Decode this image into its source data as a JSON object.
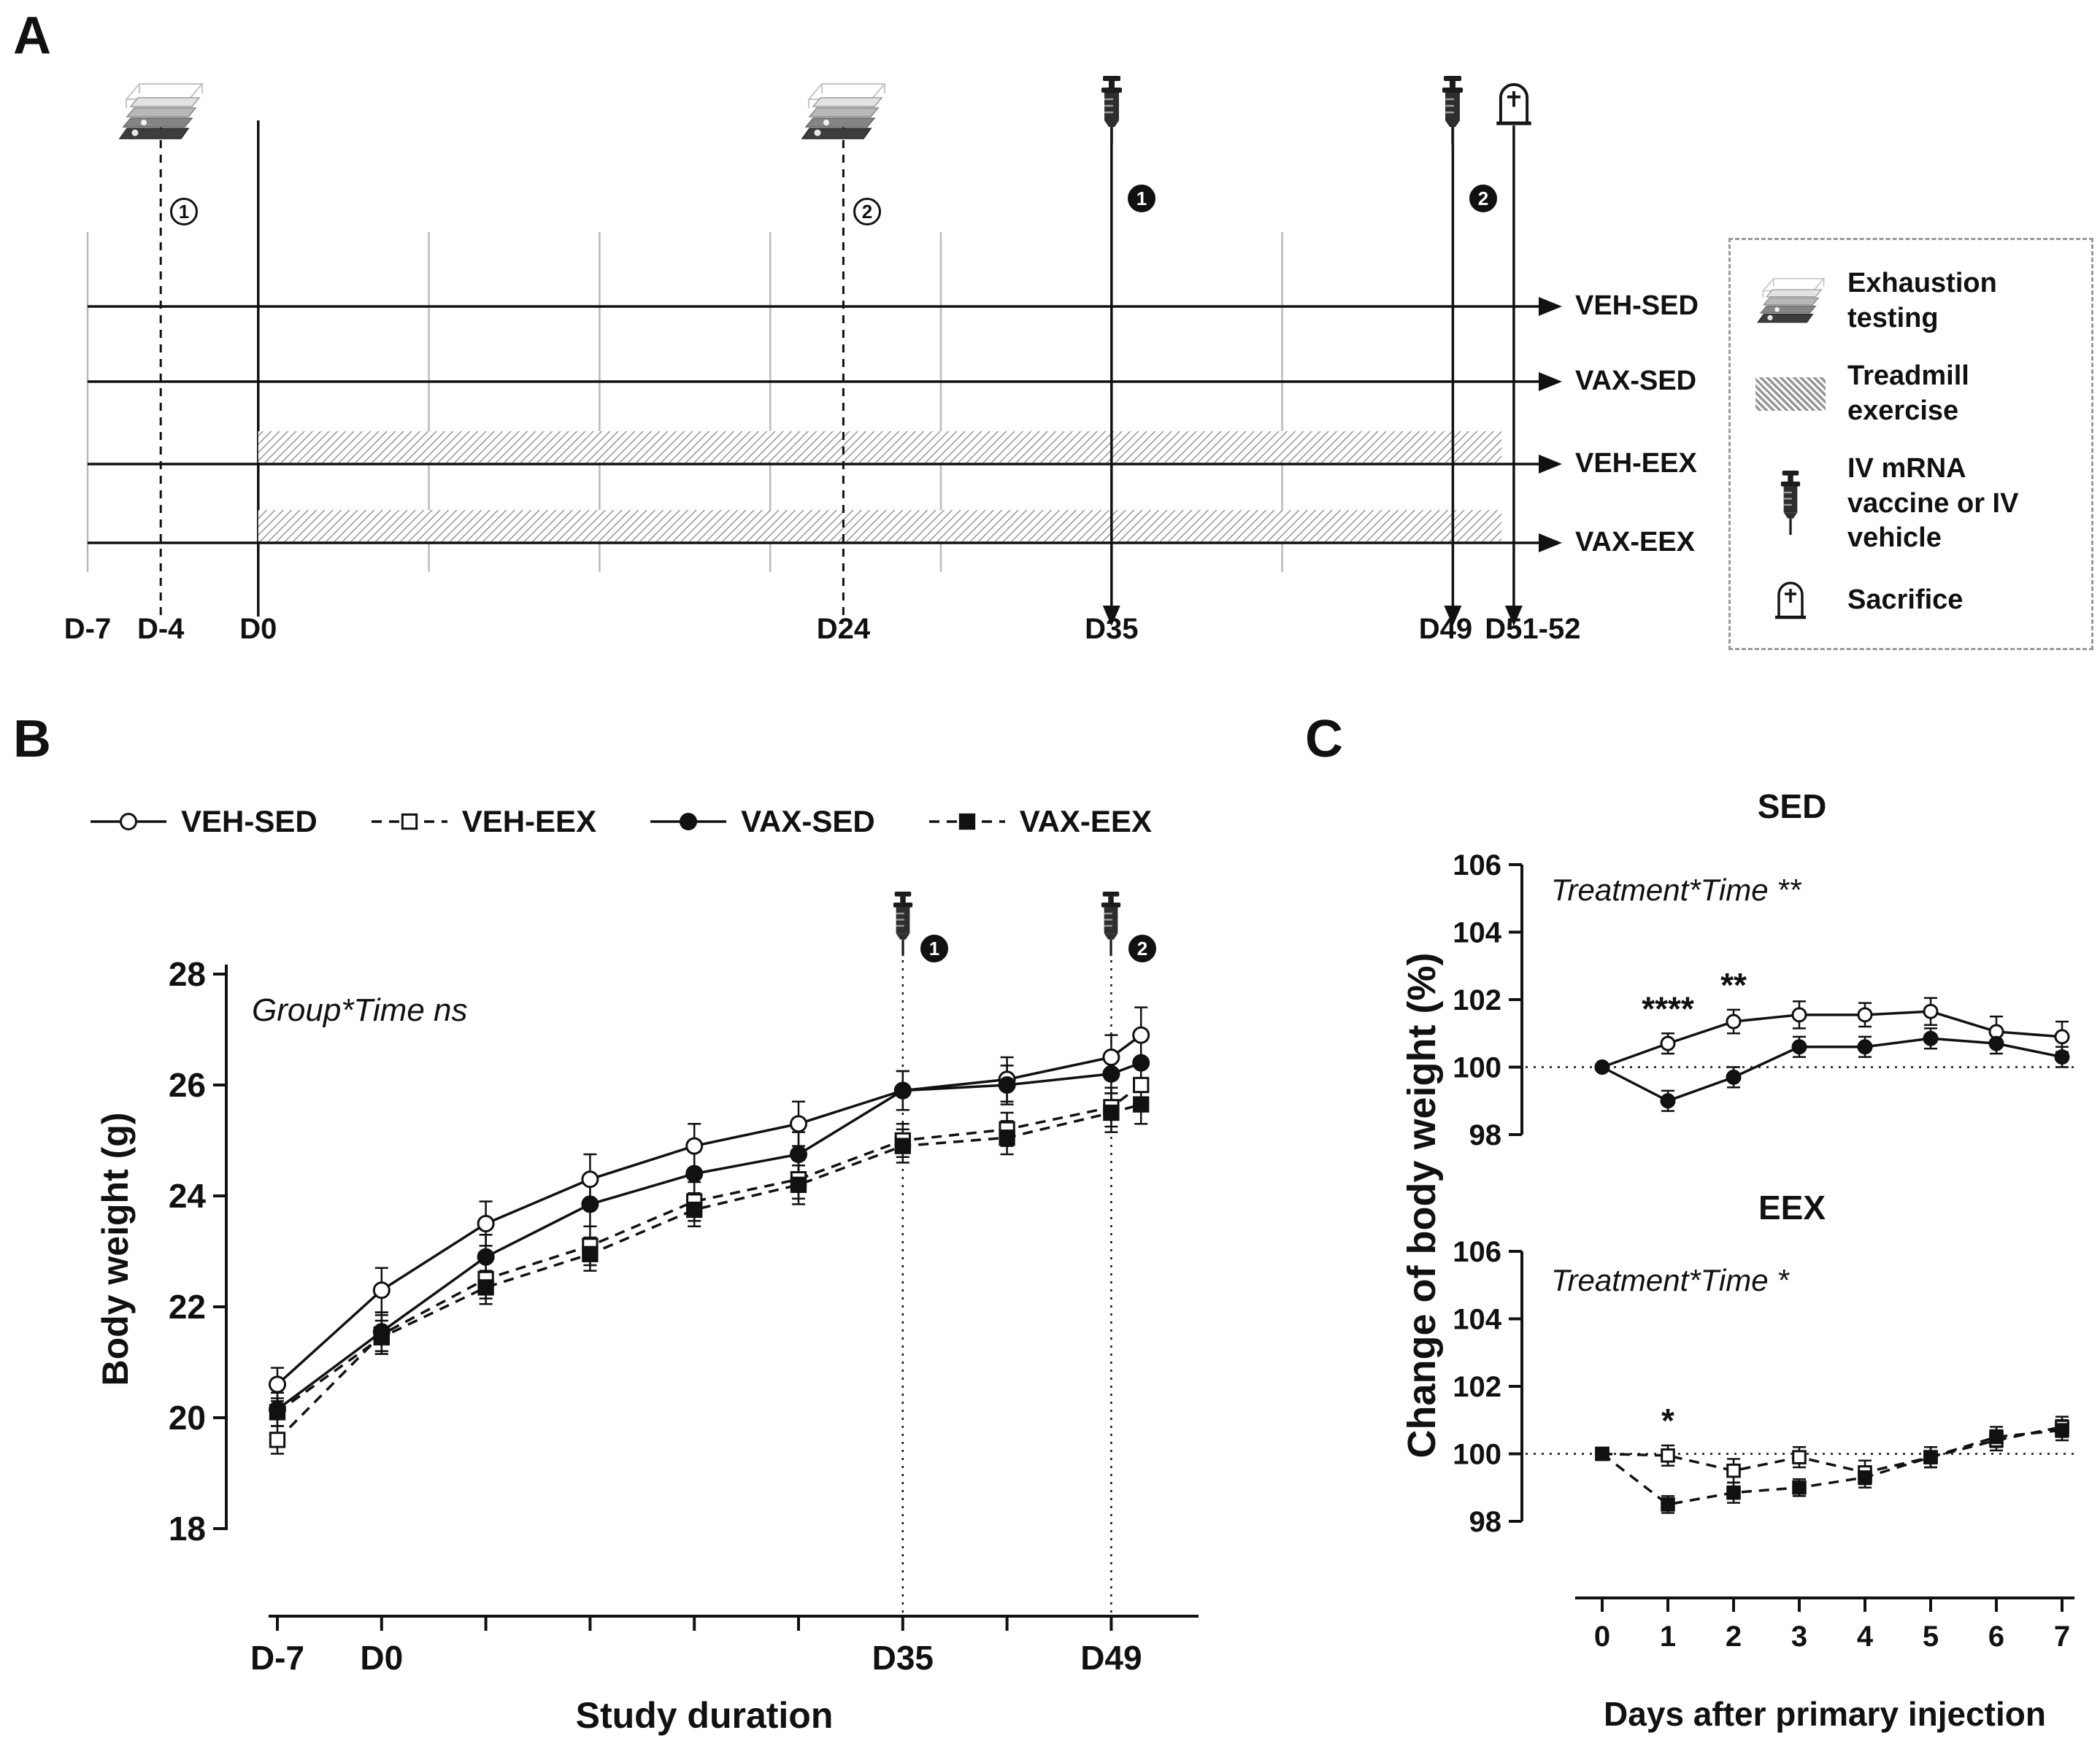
{
  "figure": {
    "panel_a_label": "A",
    "panel_b_label": "B",
    "panel_c_label": "C"
  },
  "colors": {
    "ink": "#111111",
    "grid_gray": "#b9b9b9",
    "hatch_gray": "#969696"
  },
  "timeline": {
    "groups": [
      {
        "label": "VEH-SED",
        "exercise": false
      },
      {
        "label": "VAX-SED",
        "exercise": false
      },
      {
        "label": "VEH-EEX",
        "exercise": true
      },
      {
        "label": "VAX-EEX",
        "exercise": true
      }
    ],
    "day_labels": [
      {
        "day": -7,
        "label": "D-7"
      },
      {
        "day": -4,
        "label": "D-4"
      },
      {
        "day": 0,
        "label": "D0"
      },
      {
        "day": 24,
        "label": "D24"
      },
      {
        "day": 35,
        "label": "D35"
      },
      {
        "day": 49,
        "label": "D49"
      },
      {
        "day": 51.5,
        "label": "D51-52"
      }
    ],
    "events": {
      "exhaustion_tests": [
        {
          "day": -4,
          "badge": "1"
        },
        {
          "day": 24,
          "badge": "2"
        }
      ],
      "injections": [
        {
          "day": 35,
          "badge": "1"
        },
        {
          "day": 49,
          "badge": "2"
        }
      ],
      "sacrifice": {
        "day": 51.5
      }
    },
    "exercise_span": {
      "start_day": 0,
      "end_day": 51
    },
    "legend": [
      {
        "icon": "treadmill-icon",
        "label": "Exhaustion testing"
      },
      {
        "icon": "hatch-swatch",
        "label": "Treadmill exercise"
      },
      {
        "icon": "syringe-icon",
        "label": "IV mRNA vaccine or IV vehicle"
      },
      {
        "icon": "tombstone-icon",
        "label": "Sacrifice"
      }
    ]
  },
  "chart_data": [
    {
      "id": "body-weight",
      "type": "line",
      "xlabel": "Study duration",
      "ylabel": "Body weight (g)",
      "stats_annotation": "Group*Time ns",
      "ylim": [
        18,
        28
      ],
      "yticks": [
        18,
        20,
        22,
        24,
        26,
        28
      ],
      "x_days": [
        -7,
        0,
        7,
        14,
        21,
        28,
        35,
        42,
        49,
        51
      ],
      "xtick_days": [
        -7,
        0,
        7,
        14,
        21,
        28,
        35,
        42,
        49
      ],
      "xtick_labels": {
        "-7": "D-7",
        "0": "D0",
        "35": "D35",
        "49": "D49"
      },
      "injections": [
        {
          "day": 35,
          "badge": "1"
        },
        {
          "day": 49,
          "badge": "2"
        }
      ],
      "series": [
        {
          "name": "VEH-SED",
          "marker": "circle-open",
          "line": "solid",
          "values": [
            20.6,
            22.3,
            23.5,
            24.3,
            24.9,
            25.3,
            25.9,
            26.1,
            26.5,
            26.9
          ],
          "err": [
            0.3,
            0.4,
            0.4,
            0.45,
            0.4,
            0.4,
            0.35,
            0.4,
            0.4,
            0.5
          ]
        },
        {
          "name": "VEH-EEX",
          "marker": "square-open",
          "line": "dashed",
          "values": [
            19.6,
            21.5,
            22.5,
            23.1,
            23.9,
            24.3,
            25.0,
            25.2,
            25.6,
            26.0
          ],
          "err": [
            0.25,
            0.35,
            0.35,
            0.35,
            0.35,
            0.35,
            0.3,
            0.3,
            0.35,
            0.4
          ]
        },
        {
          "name": "VAX-SED",
          "marker": "circle-filled",
          "line": "solid",
          "values": [
            20.15,
            21.55,
            22.9,
            23.85,
            24.4,
            24.75,
            25.9,
            26.0,
            26.2,
            26.4
          ],
          "err": [
            0.3,
            0.35,
            0.4,
            0.4,
            0.4,
            0.4,
            0.35,
            0.35,
            0.35,
            0.4
          ]
        },
        {
          "name": "VAX-EEX",
          "marker": "square-filled",
          "line": "dashed",
          "values": [
            20.1,
            21.45,
            22.35,
            22.95,
            23.75,
            24.2,
            24.9,
            25.05,
            25.5,
            25.65
          ],
          "err": [
            0.25,
            0.3,
            0.3,
            0.3,
            0.3,
            0.35,
            0.3,
            0.3,
            0.35,
            0.35
          ]
        }
      ]
    },
    {
      "id": "sed-weight-change",
      "type": "line",
      "title": "SED",
      "stats_annotation": "Treatment*Time **",
      "ylim": [
        98,
        106
      ],
      "yticks": [
        98,
        100,
        102,
        104,
        106
      ],
      "refline": 100,
      "x": [
        0,
        1,
        2,
        3,
        4,
        5,
        6,
        7
      ],
      "series": [
        {
          "name": "VEH-SED",
          "marker": "circle-open",
          "line": "solid",
          "values": [
            100,
            100.7,
            101.35,
            101.55,
            101.55,
            101.65,
            101.05,
            100.9
          ],
          "err": [
            0,
            0.3,
            0.35,
            0.4,
            0.35,
            0.4,
            0.45,
            0.45
          ]
        },
        {
          "name": "VAX-SED",
          "marker": "circle-filled",
          "line": "solid",
          "values": [
            100,
            99.0,
            99.7,
            100.6,
            100.6,
            100.85,
            100.7,
            100.3
          ],
          "err": [
            0,
            0.3,
            0.3,
            0.3,
            0.3,
            0.3,
            0.3,
            0.3
          ]
        }
      ],
      "significance": [
        {
          "x": 1,
          "text": "****"
        },
        {
          "x": 2,
          "text": "**"
        }
      ]
    },
    {
      "id": "eex-weight-change",
      "type": "line",
      "title": "EEX",
      "stats_annotation": "Treatment*Time *",
      "ylim": [
        98,
        106
      ],
      "yticks": [
        98,
        100,
        102,
        104,
        106
      ],
      "refline": 100,
      "x": [
        0,
        1,
        2,
        3,
        4,
        5,
        6,
        7
      ],
      "series": [
        {
          "name": "VEH-EEX",
          "marker": "square-open",
          "line": "dashed",
          "values": [
            100,
            99.95,
            99.5,
            99.9,
            99.45,
            99.9,
            100.4,
            100.8
          ],
          "err": [
            0,
            0.3,
            0.35,
            0.3,
            0.35,
            0.3,
            0.3,
            0.3
          ]
        },
        {
          "name": "VAX-EEX",
          "marker": "square-filled",
          "line": "dashed",
          "values": [
            100,
            98.5,
            98.85,
            99.0,
            99.3,
            99.9,
            100.5,
            100.7
          ],
          "err": [
            0,
            0.25,
            0.3,
            0.25,
            0.3,
            0.3,
            0.3,
            0.3
          ]
        }
      ],
      "significance": [
        {
          "x": 1,
          "text": "*"
        }
      ]
    }
  ],
  "panel_c": {
    "ylabel": "Change of body weight (%)",
    "xlabel": "Days after primary injection",
    "xticks": [
      0,
      1,
      2,
      3,
      4,
      5,
      6,
      7
    ]
  }
}
